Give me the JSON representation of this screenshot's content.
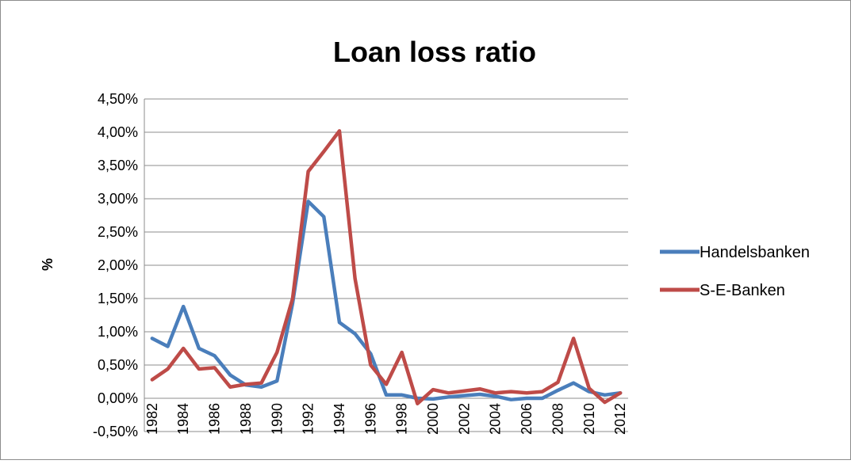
{
  "chart_data": {
    "type": "line",
    "title": "Loan loss ratio",
    "xlabel": "",
    "ylabel": "%",
    "ylim": [
      -0.005,
      0.045
    ],
    "y_ticks": [
      "-0,50%",
      "0,00%",
      "0,50%",
      "1,00%",
      "1,50%",
      "2,00%",
      "2,50%",
      "3,00%",
      "3,50%",
      "4,00%",
      "4,50%"
    ],
    "y_tick_values": [
      -0.005,
      0.0,
      0.005,
      0.01,
      0.015,
      0.02,
      0.025,
      0.03,
      0.035,
      0.04,
      0.045
    ],
    "x_ticks": [
      "1982",
      "1984",
      "1986",
      "1988",
      "1990",
      "1992",
      "1994",
      "1996",
      "1998",
      "2000",
      "2002",
      "2004",
      "2006",
      "2008",
      "2010",
      "2012"
    ],
    "x_tick_values": [
      1982,
      1984,
      1986,
      1988,
      1990,
      1992,
      1994,
      1996,
      1998,
      2000,
      2002,
      2004,
      2006,
      2008,
      2010,
      2012
    ],
    "x": [
      1982,
      1983,
      1984,
      1985,
      1986,
      1987,
      1988,
      1989,
      1990,
      1991,
      1992,
      1993,
      1994,
      1995,
      1996,
      1997,
      1998,
      1999,
      2000,
      2001,
      2002,
      2003,
      2004,
      2005,
      2006,
      2007,
      2008,
      2009,
      2010,
      2011,
      2012
    ],
    "grid": true,
    "legend_position": "right",
    "series": [
      {
        "name": "Handelsbanken",
        "color": "#4a7ebb",
        "values": [
          0.009,
          0.0078,
          0.0138,
          0.0075,
          0.0064,
          0.0035,
          0.002,
          0.0017,
          0.0026,
          0.0143,
          0.0296,
          0.0273,
          0.0114,
          0.0097,
          0.0067,
          0.0005,
          0.0005,
          0.0,
          -0.0001,
          0.0002,
          0.0004,
          0.0006,
          0.0003,
          -0.0002,
          0.0,
          0.0,
          0.0012,
          0.0023,
          0.001,
          0.0005,
          0.0008
        ]
      },
      {
        "name": "S-E-Banken",
        "color": "#be4b48",
        "values": [
          0.0028,
          0.0044,
          0.0075,
          0.0044,
          0.0046,
          0.0017,
          0.0021,
          0.0023,
          0.0069,
          0.015,
          0.0341,
          0.0371,
          0.0402,
          0.018,
          0.005,
          0.0021,
          0.0069,
          -0.0008,
          0.0013,
          0.0008,
          0.0011,
          0.0014,
          0.0008,
          0.001,
          0.0008,
          0.001,
          0.0024,
          0.009,
          0.0015,
          -0.0006,
          0.0008
        ]
      }
    ]
  }
}
